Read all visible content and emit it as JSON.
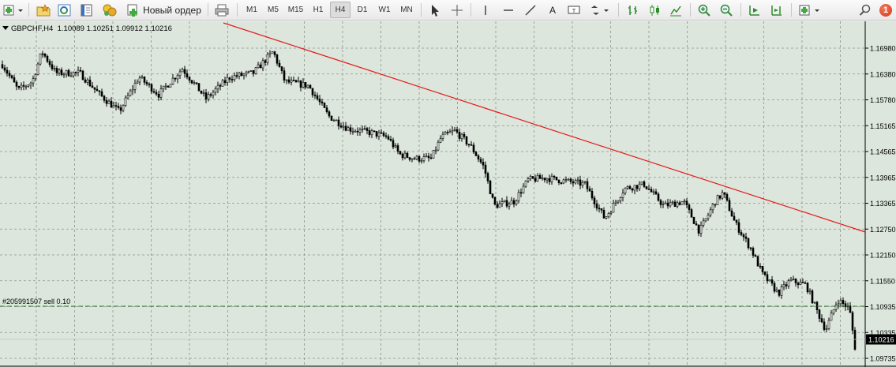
{
  "toolbar": {
    "new_order_label": "Новый ордер",
    "timeframes": [
      "M1",
      "M5",
      "M15",
      "H1",
      "H4",
      "D1",
      "W1",
      "MN"
    ],
    "active_timeframe": "H4",
    "text_tool_label": "A",
    "notification_count": "1"
  },
  "chart": {
    "header": {
      "symbol": "GBPCHF,H4",
      "ohlc": "1.10089 1.10251 1.09912 1.10216"
    },
    "order_label": "#205991507 sell 0.10",
    "price_labels": [
      "1.16980",
      "1.16380",
      "1.15780",
      "1.15165",
      "1.14565",
      "1.13965",
      "1.13365",
      "1.12750",
      "1.12150",
      "1.11550",
      "1.10935",
      "1.10335",
      "1.09735"
    ],
    "current_price": "1.10216",
    "colors": {
      "background": "#dce6dc",
      "grid": "#8d948d",
      "candle": "#000000",
      "trendline": "#e41b1b",
      "order_line": "#2e7d2e",
      "current_price_tag": "#000000",
      "current_price_text": "#ffffff"
    }
  }
}
